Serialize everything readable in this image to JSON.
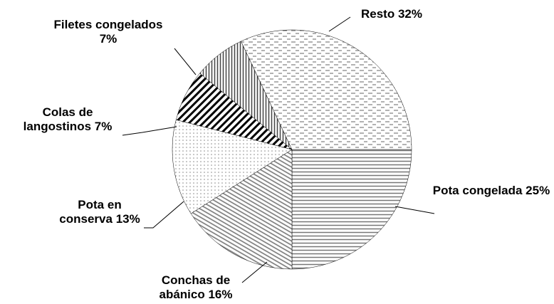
{
  "chart_data": {
    "type": "pie",
    "categories": [
      "Pota congelada",
      "Conchas de abánico",
      "Pota en conserva",
      "Colas de langostinos",
      "Filetes congelados",
      "Resto"
    ],
    "values": [
      25,
      16,
      13,
      7,
      7,
      32
    ],
    "value_labels": [
      "25%",
      "16%",
      "13%",
      "7%",
      "7%",
      "32%"
    ]
  }
}
